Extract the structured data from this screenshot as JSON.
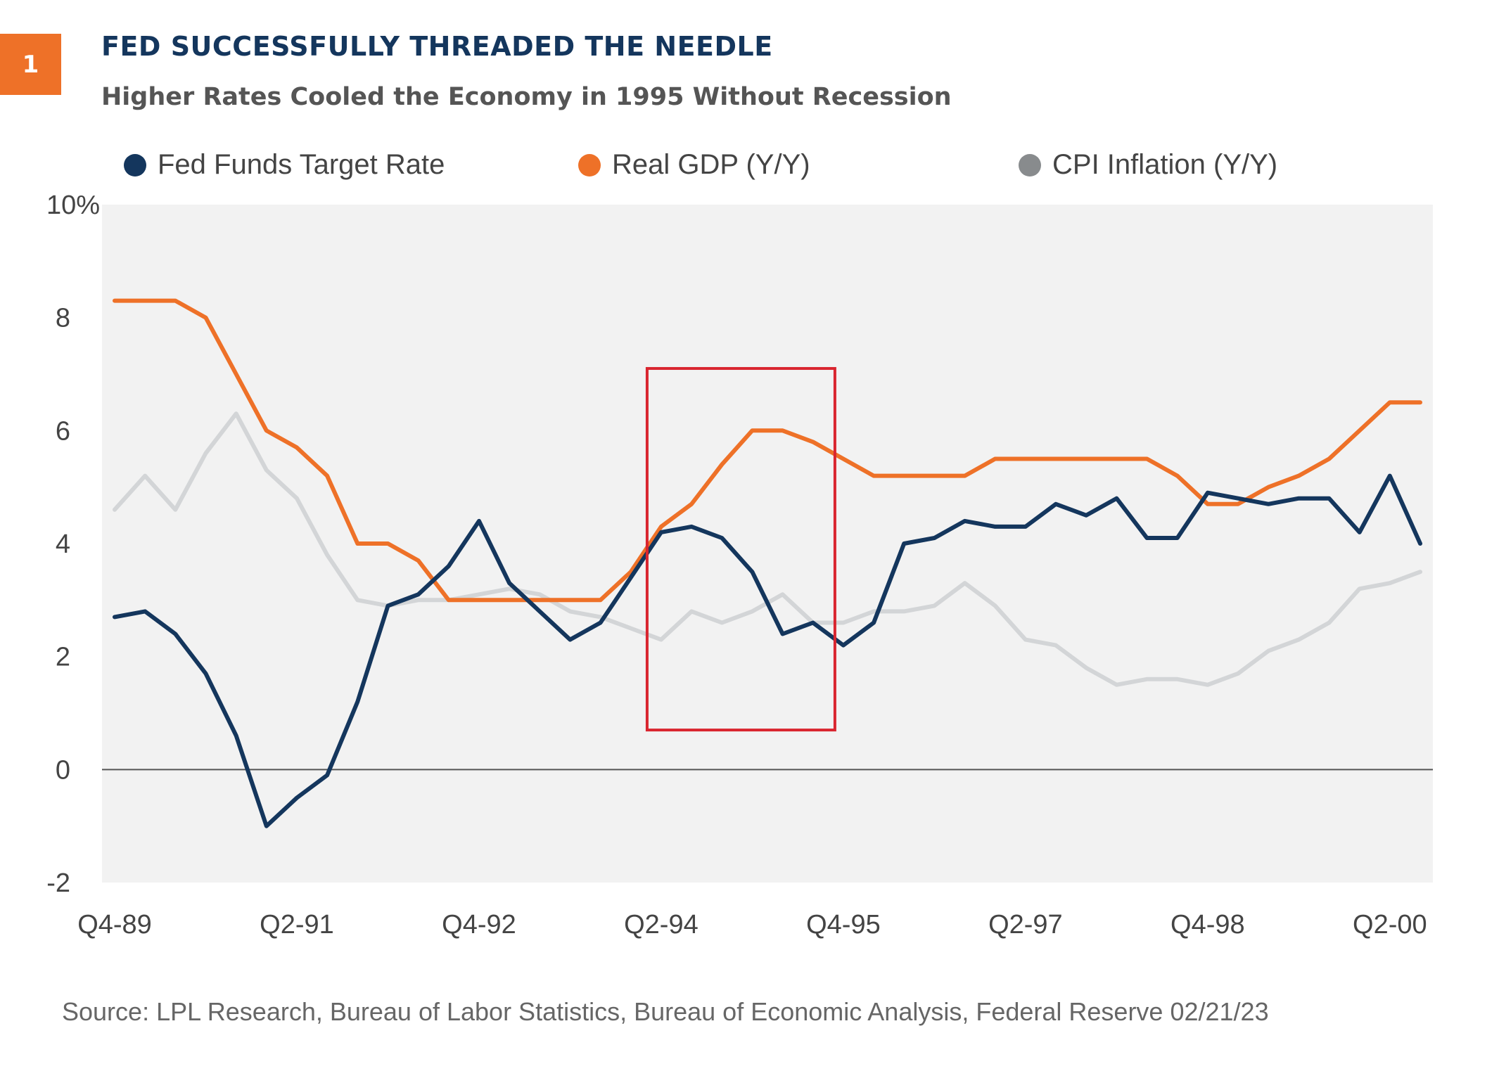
{
  "badge": "1",
  "title": "FED SUCCESSFULLY THREADED THE NEEDLE",
  "subtitle": "Higher Rates Cooled the Economy in 1995 Without Recession",
  "source": "Source: LPL Research, Bureau of Labor Statistics, Bureau of Economic Analysis, Federal Reserve  02/21/23",
  "legend": [
    {
      "label": "Fed Funds Target Rate",
      "color": "#14365d"
    },
    {
      "label": "Real GDP (Y/Y)",
      "color": "#ee7128"
    },
    {
      "label": "CPI Inflation (Y/Y)",
      "color": "#888b8d"
    }
  ],
  "chart_data": {
    "type": "line",
    "title": "FED SUCCESSFULLY THREADED THE NEEDLE",
    "subtitle": "Higher Rates Cooled the Economy in 1995 Without Recession",
    "xlabel": "",
    "ylabel": "",
    "ylim": [
      -2,
      10
    ],
    "yticks": [
      "-2",
      "0",
      "2",
      "4",
      "6",
      "8",
      "10%"
    ],
    "ytick_values": [
      -2,
      0,
      2,
      4,
      6,
      8,
      10
    ],
    "x": [
      "Q4-89",
      "Q1-90",
      "Q2-90",
      "Q3-90",
      "Q4-90",
      "Q1-91",
      "Q2-91",
      "Q3-91",
      "Q4-91",
      "Q1-92",
      "Q2-92",
      "Q3-92",
      "Q4-92",
      "Q1-93",
      "Q2-93",
      "Q3-93",
      "Q4-93",
      "Q1-94",
      "Q2-94",
      "Q3-94",
      "Q4-94",
      "Q1-95",
      "Q2-95",
      "Q3-95",
      "Q4-95",
      "Q1-96",
      "Q2-96",
      "Q3-96",
      "Q4-96",
      "Q1-97",
      "Q2-97",
      "Q3-97",
      "Q4-97",
      "Q1-98",
      "Q2-98",
      "Q3-98",
      "Q4-98",
      "Q1-99",
      "Q2-99",
      "Q3-99",
      "Q4-99",
      "Q1-00",
      "Q2-00",
      "Q3-00"
    ],
    "xtick_labels": [
      "Q4-89",
      "Q2-91",
      "Q4-92",
      "Q2-94",
      "Q4-95",
      "Q2-97",
      "Q4-98",
      "Q2-00"
    ],
    "zero_line": true,
    "grid": false,
    "legend_position": "top",
    "highlight_box": {
      "x_start": "Q2-94",
      "x_end": "Q4-95",
      "y_low": 0.7,
      "y_high": 7.1,
      "color": "#d9252f"
    },
    "series": [
      {
        "name": "Fed Funds Target Rate",
        "color": "#14365d",
        "values": [
          2.7,
          2.8,
          2.4,
          1.7,
          0.6,
          -1.0,
          -0.5,
          -0.1,
          1.2,
          2.9,
          3.1,
          3.6,
          4.4,
          3.3,
          2.8,
          2.3,
          2.6,
          3.4,
          4.2,
          4.3,
          4.1,
          3.5,
          2.4,
          2.6,
          2.2,
          2.6,
          4.0,
          4.1,
          4.4,
          4.3,
          4.3,
          4.7,
          4.5,
          4.8,
          4.1,
          4.1,
          4.9,
          4.8,
          4.7,
          4.8,
          4.8,
          4.2,
          5.2,
          4.0
        ]
      },
      {
        "name": "Real GDP (Y/Y)",
        "color": "#ee7128",
        "values": [
          8.3,
          8.3,
          8.3,
          8.0,
          7.0,
          6.0,
          5.7,
          5.2,
          4.0,
          4.0,
          3.7,
          3.0,
          3.0,
          3.0,
          3.0,
          3.0,
          3.0,
          3.5,
          4.3,
          4.7,
          5.4,
          6.0,
          6.0,
          5.8,
          5.5,
          5.2,
          5.2,
          5.2,
          5.2,
          5.5,
          5.5,
          5.5,
          5.5,
          5.5,
          5.5,
          5.2,
          4.7,
          4.7,
          5.0,
          5.2,
          5.5,
          6.0,
          6.5,
          6.5
        ]
      },
      {
        "name": "CPI Inflation (Y/Y)",
        "color": "#d3d5d7",
        "values": [
          4.6,
          5.2,
          4.6,
          5.6,
          6.3,
          5.3,
          4.8,
          3.8,
          3.0,
          2.9,
          3.0,
          3.0,
          3.1,
          3.2,
          3.1,
          2.8,
          2.7,
          2.5,
          2.3,
          2.8,
          2.6,
          2.8,
          3.1,
          2.6,
          2.6,
          2.8,
          2.8,
          2.9,
          3.3,
          2.9,
          2.3,
          2.2,
          1.8,
          1.5,
          1.6,
          1.6,
          1.5,
          1.7,
          2.1,
          2.3,
          2.6,
          3.2,
          3.3,
          3.5
        ]
      }
    ]
  }
}
